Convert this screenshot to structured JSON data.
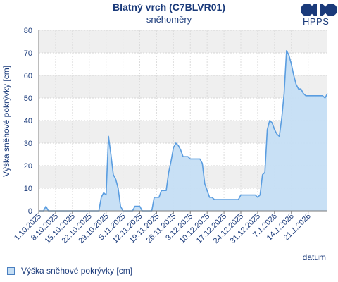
{
  "logo": {
    "text": "HPPS",
    "icon": "hpps-logo-icon",
    "color": "#1a3a7a"
  },
  "chart_data": {
    "type": "area",
    "title": "Blatný vrch (C7BLVR01)",
    "subtitle": "sněhoměry",
    "xlabel": "datum",
    "ylabel": "Výška sněhové pokrývky [cm]",
    "ylim": [
      0,
      80
    ],
    "yticks": [
      0,
      10,
      20,
      30,
      40,
      50,
      60,
      70,
      80
    ],
    "xlim": [
      "2025-10-01",
      "2026-01-29"
    ],
    "xticks": [
      "1.10.2025",
      "8.10.2025",
      "15.10.2025",
      "22.10.2025",
      "29.10.2025",
      "5.11.2025",
      "12.11.2025",
      "19.11.2025",
      "26.11.2025",
      "3.12.2025",
      "10.12.2025",
      "17.12.2025",
      "24.12.2025",
      "31.12.2025",
      "7.1.2026",
      "14.1.2026",
      "21.1.2026"
    ],
    "grid": true,
    "legend": "bottom-left",
    "colors": {
      "fill": "#c5def4",
      "line": "#5a9de0",
      "band": "#efefef"
    },
    "series": [
      {
        "name": "Výška sněhové pokrývky [cm]",
        "points": [
          [
            "2025-10-01",
            0
          ],
          [
            "2025-10-02",
            0
          ],
          [
            "2025-10-03",
            0
          ],
          [
            "2025-10-04",
            2
          ],
          [
            "2025-10-05",
            0
          ],
          [
            "2025-10-08",
            0
          ],
          [
            "2025-10-15",
            0
          ],
          [
            "2025-10-22",
            0
          ],
          [
            "2025-10-26",
            0
          ],
          [
            "2025-10-27",
            6
          ],
          [
            "2025-10-28",
            8
          ],
          [
            "2025-10-29",
            7
          ],
          [
            "2025-10-30",
            33
          ],
          [
            "2025-10-31",
            25
          ],
          [
            "2025-11-01",
            16
          ],
          [
            "2025-11-02",
            14
          ],
          [
            "2025-11-03",
            10
          ],
          [
            "2025-11-04",
            2
          ],
          [
            "2025-11-05",
            0
          ],
          [
            "2025-11-09",
            0
          ],
          [
            "2025-11-10",
            2
          ],
          [
            "2025-11-12",
            2
          ],
          [
            "2025-11-13",
            0
          ],
          [
            "2025-11-17",
            0
          ],
          [
            "2025-11-18",
            6
          ],
          [
            "2025-11-20",
            6
          ],
          [
            "2025-11-21",
            9
          ],
          [
            "2025-11-23",
            9
          ],
          [
            "2025-11-24",
            17
          ],
          [
            "2025-11-25",
            22
          ],
          [
            "2025-11-26",
            28
          ],
          [
            "2025-11-27",
            30
          ],
          [
            "2025-11-28",
            29
          ],
          [
            "2025-11-29",
            27
          ],
          [
            "2025-11-30",
            24
          ],
          [
            "2025-12-02",
            24
          ],
          [
            "2025-12-03",
            23
          ],
          [
            "2025-12-07",
            23
          ],
          [
            "2025-12-08",
            21
          ],
          [
            "2025-12-09",
            12
          ],
          [
            "2025-12-10",
            9
          ],
          [
            "2025-12-11",
            6
          ],
          [
            "2025-12-12",
            6
          ],
          [
            "2025-12-13",
            5
          ],
          [
            "2025-12-23",
            5
          ],
          [
            "2025-12-24",
            7
          ],
          [
            "2025-12-30",
            7
          ],
          [
            "2025-12-31",
            6
          ],
          [
            "2026-01-01",
            7
          ],
          [
            "2026-01-02",
            16
          ],
          [
            "2026-01-03",
            17
          ],
          [
            "2026-01-04",
            36
          ],
          [
            "2026-01-05",
            40
          ],
          [
            "2026-01-06",
            39
          ],
          [
            "2026-01-07",
            36
          ],
          [
            "2026-01-08",
            34
          ],
          [
            "2026-01-09",
            33
          ],
          [
            "2026-01-10",
            41
          ],
          [
            "2026-01-11",
            52
          ],
          [
            "2026-01-12",
            71
          ],
          [
            "2026-01-13",
            69
          ],
          [
            "2026-01-14",
            65
          ],
          [
            "2026-01-15",
            60
          ],
          [
            "2026-01-16",
            56
          ],
          [
            "2026-01-17",
            54
          ],
          [
            "2026-01-18",
            54
          ],
          [
            "2026-01-19",
            52
          ],
          [
            "2026-01-20",
            51
          ],
          [
            "2026-01-27",
            51
          ],
          [
            "2026-01-28",
            50
          ],
          [
            "2026-01-29",
            52
          ]
        ]
      }
    ]
  }
}
